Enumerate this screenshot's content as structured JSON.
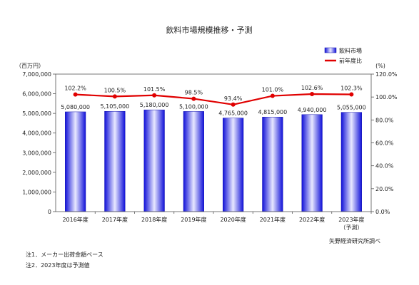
{
  "chart_data": {
    "type": "bar",
    "title": "飲料市場規模推移・予測",
    "categories": [
      "2016年度",
      "2017年度",
      "2018年度",
      "2019年度",
      "2020年度",
      "2021年度",
      "2022年度",
      "2023年度"
    ],
    "category_sublabels": [
      "",
      "",
      "",
      "",
      "",
      "",
      "",
      "（予測）"
    ],
    "series": [
      {
        "name": "飲料市場",
        "kind": "bar",
        "axis": "left",
        "values": [
          5080000,
          5105000,
          5180000,
          5100000,
          4765000,
          4815000,
          4940000,
          5055000
        ],
        "value_labels": [
          "5,080,000",
          "5,105,000",
          "5,180,000",
          "5,100,000",
          "4,765,000",
          "4,815,000",
          "4,940,000",
          "5,055,000"
        ],
        "color": "#3a3ae6"
      },
      {
        "name": "前年度比",
        "kind": "line",
        "axis": "right",
        "values": [
          102.2,
          100.5,
          101.5,
          98.5,
          93.4,
          101.0,
          102.6,
          102.3
        ],
        "value_labels": [
          "102.2%",
          "100.5%",
          "101.5%",
          "98.5%",
          "93.4%",
          "101.0%",
          "102.6%",
          "102.3%"
        ],
        "color": "#e00000"
      }
    ],
    "left_axis": {
      "unit": "（百万円）",
      "ylim": [
        0,
        7000000
      ],
      "ticks": [
        0,
        1000000,
        2000000,
        3000000,
        4000000,
        5000000,
        6000000,
        7000000
      ],
      "tick_labels": [
        "0",
        "1,000,000",
        "2,000,000",
        "3,000,000",
        "4,000,000",
        "5,000,000",
        "6,000,000",
        "7,000,000"
      ]
    },
    "right_axis": {
      "unit": "(%)",
      "ylim": [
        0,
        120
      ],
      "ticks": [
        0,
        20,
        40,
        60,
        80,
        100,
        120
      ],
      "tick_labels": [
        "0.0%",
        "20.0%",
        "40.0%",
        "60.0%",
        "80.0%",
        "100.0%",
        "120.0%"
      ]
    },
    "grid": false,
    "legend_position": "top-right"
  },
  "notes": [
    "注1．メーカー出荷金額ベース",
    "注2．2023年度は予測値"
  ],
  "source": "矢野経済研究所調べ"
}
